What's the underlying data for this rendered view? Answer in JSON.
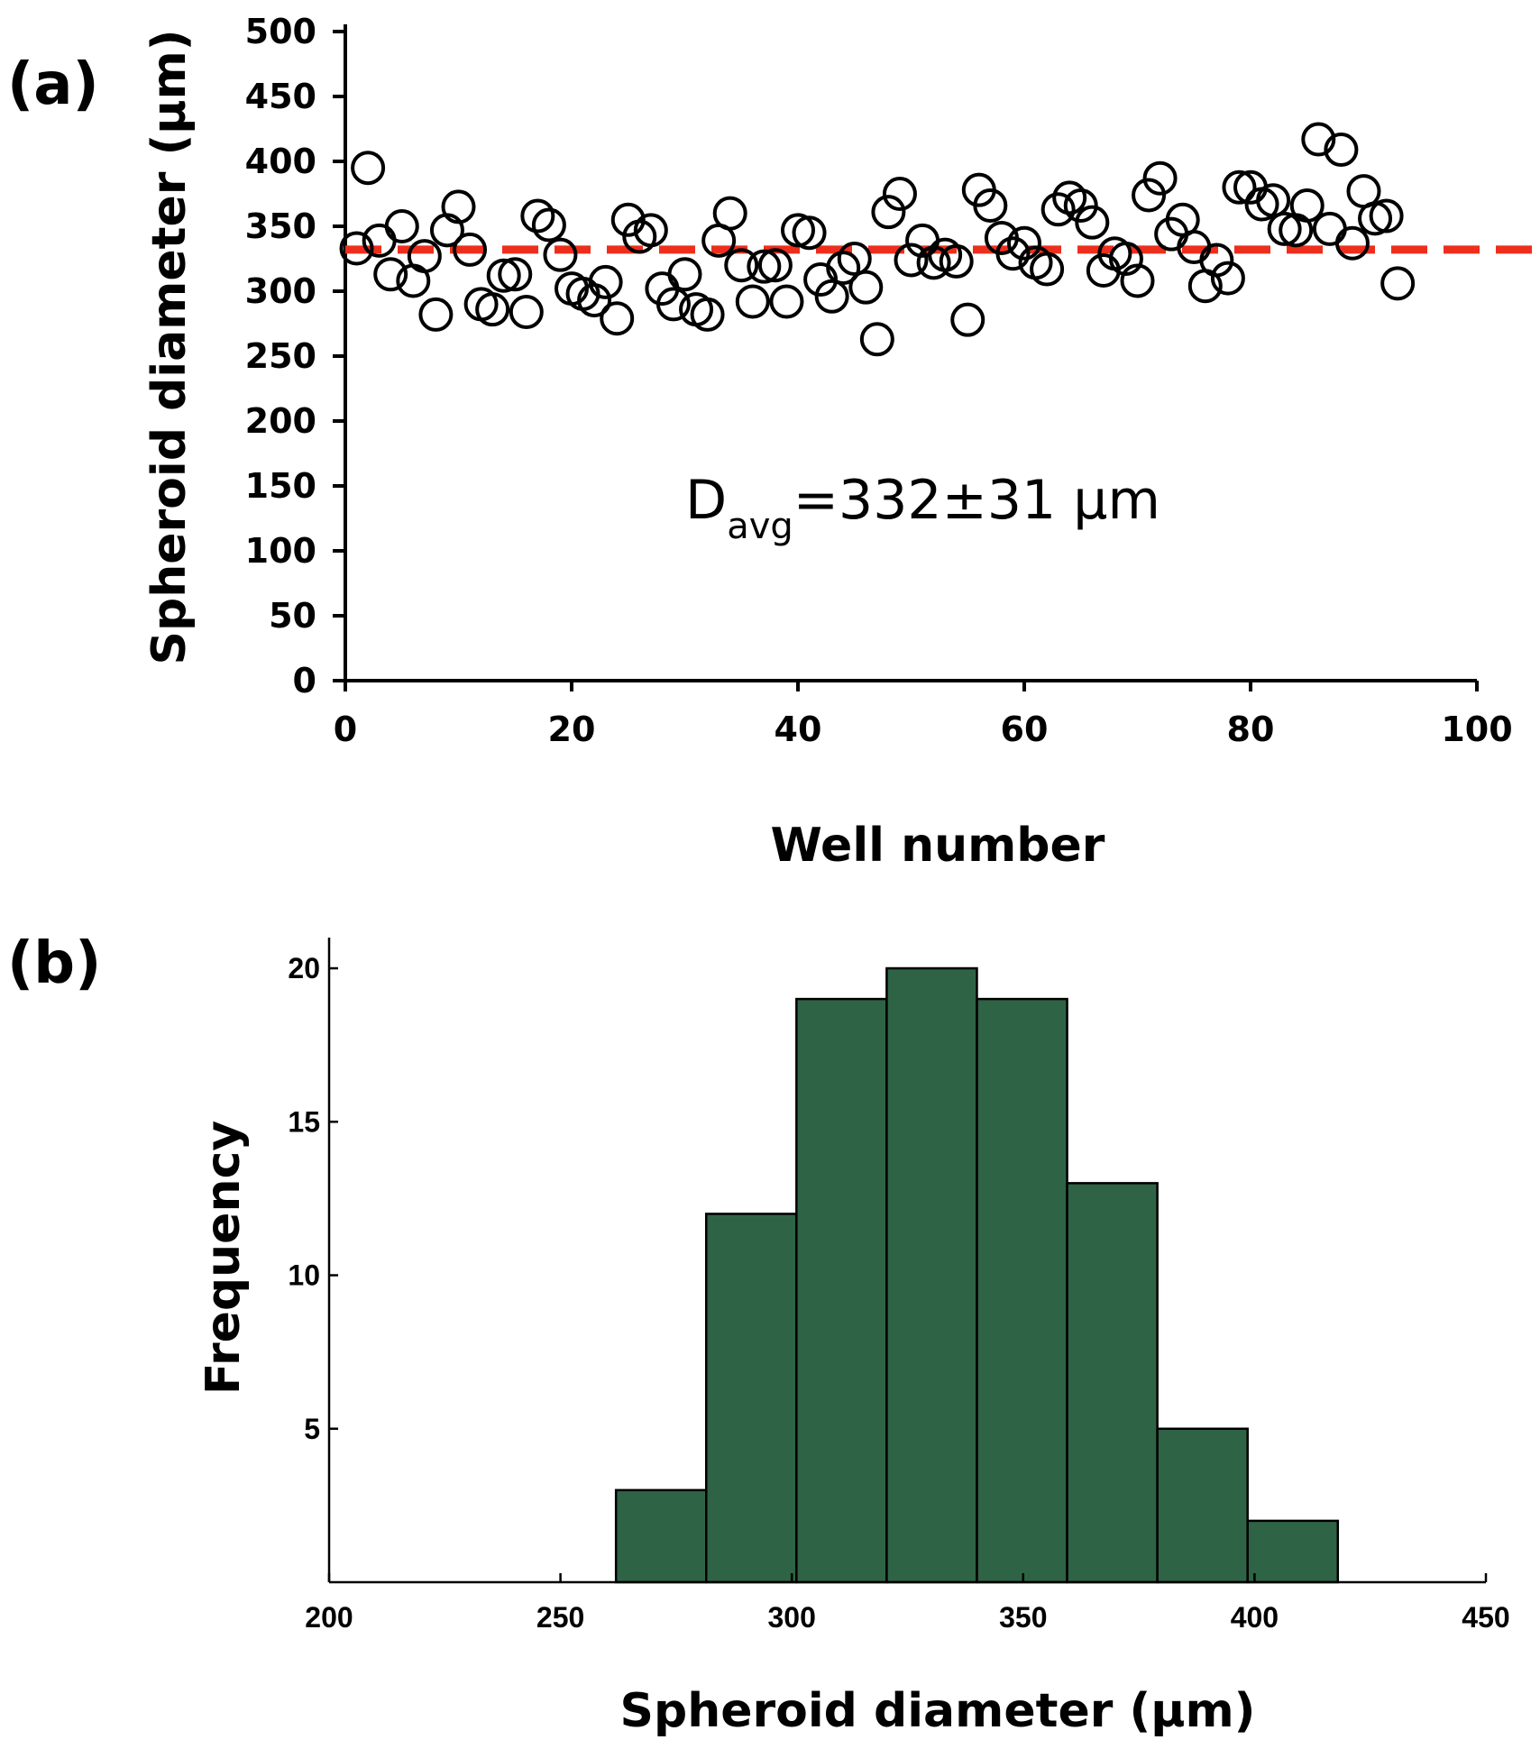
{
  "chart_data": [
    {
      "panel": "(a)",
      "type": "scatter",
      "xlabel": "Well number",
      "ylabel": "Spheroid diameter (μm)",
      "xlim": [
        0,
        100
      ],
      "ylim": [
        0,
        500
      ],
      "xticks": [
        0,
        20,
        40,
        60,
        80,
        100
      ],
      "yticks": [
        0,
        50,
        100,
        150,
        200,
        250,
        300,
        350,
        400,
        450,
        500
      ],
      "x": [
        1,
        2,
        3,
        4,
        5,
        6,
        7,
        8,
        9,
        10,
        11,
        12,
        13,
        14,
        15,
        16,
        17,
        18,
        19,
        20,
        21,
        22,
        23,
        24,
        25,
        26,
        27,
        28,
        29,
        30,
        31,
        32,
        33,
        34,
        35,
        36,
        37,
        38,
        39,
        40,
        41,
        42,
        43,
        44,
        45,
        46,
        47,
        48,
        49,
        50,
        51,
        52,
        53,
        54,
        55,
        56,
        57,
        58,
        59,
        60,
        61,
        62,
        63,
        64,
        65,
        66,
        67,
        68,
        69,
        70,
        71,
        72,
        73,
        74,
        75,
        76,
        77,
        78,
        79,
        80,
        81,
        82,
        83,
        84,
        85,
        86,
        87,
        88,
        89,
        90,
        91,
        92,
        93
      ],
      "y": [
        333,
        395,
        339,
        313,
        350,
        308,
        327,
        282,
        347,
        365,
        332,
        290,
        286,
        312,
        313,
        284,
        358,
        351,
        328,
        302,
        298,
        293,
        307,
        279,
        355,
        342,
        347,
        302,
        290,
        313,
        286,
        282,
        339,
        360,
        320,
        292,
        319,
        320,
        292,
        347,
        345,
        309,
        296,
        318,
        325,
        303,
        263,
        361,
        375,
        324,
        339,
        322,
        328,
        323,
        278,
        378,
        366,
        341,
        329,
        337,
        322,
        317,
        363,
        372,
        366,
        353,
        316,
        329,
        325,
        308,
        374,
        387,
        344,
        355,
        334,
        304,
        324,
        310,
        380,
        380,
        367,
        370,
        348,
        347,
        366,
        417,
        348,
        409,
        337,
        377,
        356,
        358,
        306
      ],
      "mean_line": 332,
      "annotation": {
        "main": "D",
        "sub": "avg",
        "value": "=332±31 μm"
      }
    },
    {
      "panel": "(b)",
      "type": "bar",
      "xlabel": "Spheroid diameter (μm)",
      "ylabel": "Frequency",
      "xlim": [
        200,
        450
      ],
      "ylim": [
        0,
        21
      ],
      "xticks": [
        200,
        250,
        300,
        350,
        400,
        450
      ],
      "yticks": [
        5,
        10,
        15,
        20
      ],
      "bin_edges": [
        262,
        281.5,
        301,
        320.5,
        340,
        359.5,
        379,
        398.5,
        418
      ],
      "values": [
        3,
        12,
        19,
        20,
        19,
        13,
        5,
        2
      ]
    }
  ],
  "colors": {
    "marker_stroke": "#000000",
    "mean_line": "#ee2e1c",
    "bar_fill": "#2f6345",
    "bar_stroke": "#000000"
  }
}
